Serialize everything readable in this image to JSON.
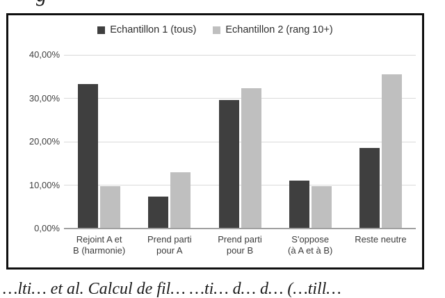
{
  "page": {
    "top_cropped_text_fragment": "g",
    "bottom_cropped_text_fragment": "…lti… et al. Calcul de fil… …ti… d… d… (…till…"
  },
  "chart_data": {
    "type": "bar",
    "title": "",
    "categories": [
      "Rejoint A et B (harmonie)",
      "Prend parti pour A",
      "Prend parti pour B",
      "S'oppose (à A et à B)",
      "Reste neutre"
    ],
    "category_label_lines": [
      "Rejoint A et\nB (harmonie)",
      "Prend parti\npour A",
      "Prend parti\npour B",
      "S'oppose\n(à A et à B)",
      "Reste neutre"
    ],
    "series": [
      {
        "name": "Echantillon 1 (tous)",
        "color": "#3f3f3f",
        "values": [
          33.3,
          7.4,
          29.6,
          11.1,
          18.5
        ]
      },
      {
        "name": "Echantillon 2 (rang 10+)",
        "color": "#bfbfbf",
        "values": [
          9.7,
          12.9,
          32.3,
          9.7,
          35.5
        ]
      }
    ],
    "y_axis": {
      "min": 0,
      "max": 40,
      "tick_interval": 10,
      "tick_labels": [
        "40,00%",
        "30,00%",
        "20,00%",
        "10,00%",
        "0,00%"
      ],
      "tick_values": [
        40,
        30,
        20,
        10,
        0
      ],
      "number_format": "0,00%"
    },
    "grid": true,
    "legend_position": "top-center",
    "colors": {
      "series1": "#3f3f3f",
      "series2": "#bfbfbf",
      "gridline": "#d9d9d9",
      "axis_line": "#a0a0a0",
      "frame_border": "#0f0f0f",
      "text": "#3a3a3a",
      "background": "#ffffff"
    }
  }
}
